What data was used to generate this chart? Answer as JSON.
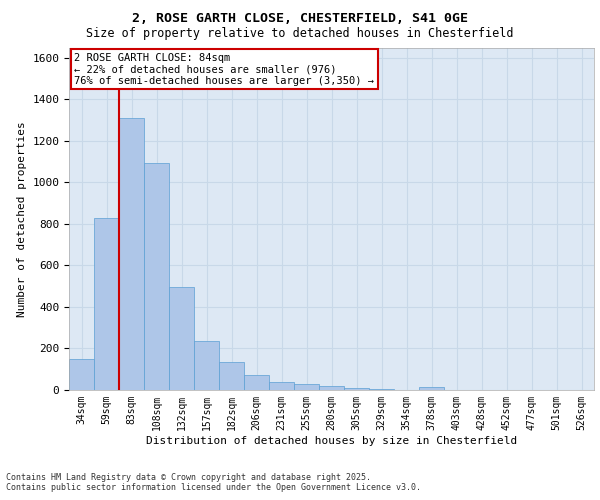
{
  "title_line1": "2, ROSE GARTH CLOSE, CHESTERFIELD, S41 0GE",
  "title_line2": "Size of property relative to detached houses in Chesterfield",
  "xlabel": "Distribution of detached houses by size in Chesterfield",
  "ylabel": "Number of detached properties",
  "categories": [
    "34sqm",
    "59sqm",
    "83sqm",
    "108sqm",
    "132sqm",
    "157sqm",
    "182sqm",
    "206sqm",
    "231sqm",
    "255sqm",
    "280sqm",
    "305sqm",
    "329sqm",
    "354sqm",
    "378sqm",
    "403sqm",
    "428sqm",
    "452sqm",
    "477sqm",
    "501sqm",
    "526sqm"
  ],
  "values": [
    148,
    830,
    1310,
    1095,
    495,
    235,
    135,
    70,
    40,
    28,
    20,
    10,
    5,
    2,
    15,
    2,
    1,
    1,
    1,
    1,
    1
  ],
  "bar_color": "#aec6e8",
  "bar_edge_color": "#5a9fd4",
  "highlight_bar_index": 2,
  "vline_color": "#cc0000",
  "annotation_text_line1": "2 ROSE GARTH CLOSE: 84sqm",
  "annotation_text_line2": "← 22% of detached houses are smaller (976)",
  "annotation_text_line3": "76% of semi-detached houses are larger (3,350) →",
  "annotation_box_edgecolor": "#cc0000",
  "annotation_bg": "#ffffff",
  "ylim": [
    0,
    1650
  ],
  "yticks": [
    0,
    200,
    400,
    600,
    800,
    1000,
    1200,
    1400,
    1600
  ],
  "grid_color": "#c8d8e8",
  "background_color": "#dde8f4",
  "footer_line1": "Contains HM Land Registry data © Crown copyright and database right 2025.",
  "footer_line2": "Contains public sector information licensed under the Open Government Licence v3.0."
}
